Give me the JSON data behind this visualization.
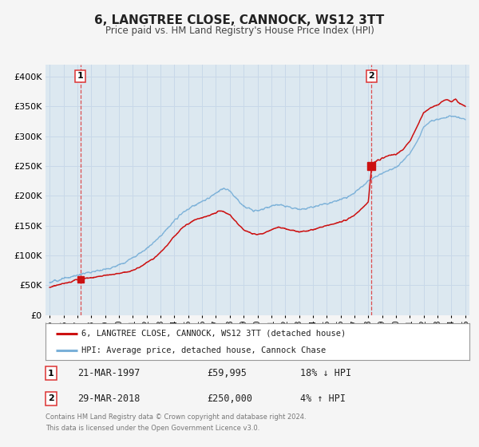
{
  "title": "6, LANGTREE CLOSE, CANNOCK, WS12 3TT",
  "subtitle": "Price paid vs. HM Land Registry's House Price Index (HPI)",
  "legend_line1": "6, LANGTREE CLOSE, CANNOCK, WS12 3TT (detached house)",
  "legend_line2": "HPI: Average price, detached house, Cannock Chase",
  "annotation1_label": "1",
  "annotation1_date": "21-MAR-1997",
  "annotation1_price": "£59,995",
  "annotation1_hpi": "18% ↓ HPI",
  "annotation2_label": "2",
  "annotation2_date": "29-MAR-2018",
  "annotation2_price": "£250,000",
  "annotation2_hpi": "4% ↑ HPI",
  "footer_line1": "Contains HM Land Registry data © Crown copyright and database right 2024.",
  "footer_line2": "This data is licensed under the Open Government Licence v3.0.",
  "hpi_color": "#7ab0d8",
  "price_color": "#cc1111",
  "marker_color": "#cc1111",
  "vline_color": "#dd3333",
  "grid_color": "#c8d8e8",
  "background_color": "#f5f5f5",
  "plot_bg_color": "#dce8f0",
  "xlim": [
    1994.7,
    2025.3
  ],
  "ylim": [
    0,
    420000
  ],
  "yticks": [
    0,
    50000,
    100000,
    150000,
    200000,
    250000,
    300000,
    350000,
    400000
  ],
  "ytick_labels": [
    "£0",
    "£50K",
    "£100K",
    "£150K",
    "£200K",
    "£250K",
    "£300K",
    "£350K",
    "£400K"
  ],
  "xticks": [
    1995,
    1996,
    1997,
    1998,
    1999,
    2000,
    2001,
    2002,
    2003,
    2004,
    2005,
    2006,
    2007,
    2008,
    2009,
    2010,
    2011,
    2012,
    2013,
    2014,
    2015,
    2016,
    2017,
    2018,
    2019,
    2020,
    2021,
    2022,
    2023,
    2024,
    2025
  ],
  "sale1_x": 1997.22,
  "sale1_y": 59995,
  "sale2_x": 2018.24,
  "sale2_y": 250000,
  "hpi_key_years": [
    1995,
    1995.5,
    1996,
    1996.5,
    1997,
    1997.5,
    1998,
    1998.5,
    1999,
    1999.5,
    2000,
    2000.5,
    2001,
    2001.5,
    2002,
    2002.5,
    2003,
    2003.5,
    2004,
    2004.5,
    2005,
    2005.5,
    2006,
    2006.5,
    2007,
    2007.3,
    2007.6,
    2008,
    2008.5,
    2009,
    2009.5,
    2010,
    2010.5,
    2011,
    2011.5,
    2012,
    2012.5,
    2013,
    2013.5,
    2014,
    2014.5,
    2015,
    2015.5,
    2016,
    2016.5,
    2017,
    2017.5,
    2018,
    2018.5,
    2019,
    2019.5,
    2020,
    2020.5,
    2021,
    2021.5,
    2022,
    2022.5,
    2023,
    2023.5,
    2024,
    2024.5,
    2025
  ],
  "hpi_key_vals": [
    55000,
    58000,
    61000,
    64000,
    67000,
    70000,
    72000,
    75000,
    77000,
    80000,
    84000,
    90000,
    96000,
    104000,
    112000,
    122000,
    133000,
    145000,
    158000,
    170000,
    178000,
    185000,
    190000,
    196000,
    205000,
    210000,
    213000,
    208000,
    195000,
    182000,
    178000,
    176000,
    179000,
    183000,
    186000,
    183000,
    180000,
    178000,
    179000,
    182000,
    185000,
    187000,
    190000,
    194000,
    198000,
    205000,
    215000,
    225000,
    232000,
    238000,
    243000,
    248000,
    258000,
    272000,
    290000,
    315000,
    325000,
    328000,
    330000,
    335000,
    332000,
    328000
  ],
  "price_key_years": [
    1995,
    1995.5,
    1996,
    1996.5,
    1997,
    1997.5,
    1998,
    1998.5,
    1999,
    1999.5,
    2000,
    2000.5,
    2001,
    2001.5,
    2002,
    2002.5,
    2003,
    2003.5,
    2004,
    2004.5,
    2005,
    2005.5,
    2006,
    2006.5,
    2007,
    2007.3,
    2007.6,
    2008,
    2008.5,
    2009,
    2009.5,
    2010,
    2010.5,
    2011,
    2011.5,
    2012,
    2012.5,
    2013,
    2013.5,
    2014,
    2014.5,
    2015,
    2015.5,
    2016,
    2016.5,
    2017,
    2017.5,
    2018,
    2018.24,
    2018.5,
    2019,
    2019.5,
    2020,
    2020.5,
    2021,
    2021.5,
    2022,
    2022.5,
    2023,
    2023.3,
    2023.6,
    2024,
    2024.3,
    2024.6,
    2025
  ],
  "price_key_vals": [
    47000,
    50000,
    53000,
    56000,
    59995,
    62000,
    63000,
    65000,
    67000,
    68000,
    70000,
    72000,
    75000,
    80000,
    88000,
    95000,
    105000,
    118000,
    132000,
    145000,
    153000,
    160000,
    163000,
    167000,
    172000,
    175000,
    174000,
    168000,
    155000,
    143000,
    138000,
    135000,
    138000,
    143000,
    148000,
    145000,
    142000,
    140000,
    141000,
    143000,
    147000,
    150000,
    153000,
    157000,
    161000,
    167000,
    178000,
    190000,
    250000,
    258000,
    263000,
    268000,
    270000,
    278000,
    292000,
    315000,
    340000,
    348000,
    352000,
    358000,
    362000,
    358000,
    362000,
    355000,
    350000
  ]
}
